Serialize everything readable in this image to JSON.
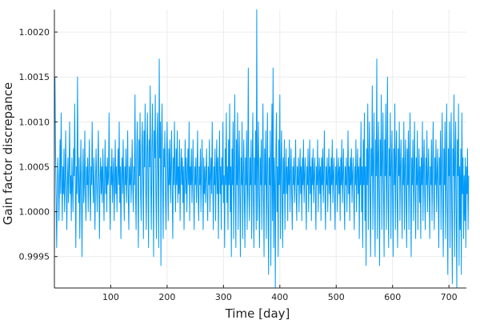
{
  "chart_data": {
    "type": "line",
    "title": "",
    "xlabel": "Time [day]",
    "ylabel": "Gain factor discrepance",
    "xlim": [
      0,
      731
    ],
    "ylim": [
      0.99915,
      1.00225
    ],
    "grid": true,
    "legend": "none",
    "x_ticks": [
      100,
      200,
      300,
      400,
      500,
      600,
      700
    ],
    "x_tick_labels": [
      "100",
      "200",
      "300",
      "400",
      "500",
      "600",
      "700"
    ],
    "y_ticks": [
      0.9995,
      1.0,
      1.0005,
      1.001,
      1.0015,
      1.002
    ],
    "y_tick_labels": [
      "0.9995",
      "1.0000",
      "1.0005",
      "1.0010",
      "1.0015",
      "1.0020"
    ],
    "series": [
      {
        "color": "#009af9",
        "x_start": 1,
        "x_step": 1,
        "values": [
          1.0015,
          1.0007,
          1.0002,
          0.9996,
          1.0001,
          1.0006,
          1.0004,
          0.9999,
          1.0003,
          1.0008,
          1.0002,
          1.0011,
          1.0004,
          0.9999,
          1.0005,
          1.0002,
          1.0007,
          1.0,
          1.0003,
          1.0009,
          1.0004,
          0.9998,
          1.0003,
          1.0006,
          1.0001,
          1.0005,
          1.001,
          1.0002,
          1.0004,
          0.9999,
          1.0006,
          1.0003,
          1.0,
          1.0007,
          1.0004,
          1.0012,
          1.0003,
          0.9996,
          1.0005,
          1.0002,
          1.0015,
          1.0004,
          1.0001,
          1.0006,
          0.9997,
          1.0003,
          1.0008,
          1.0002,
          0.9995,
          1.0004,
          1.0007,
          1.0001,
          1.0003,
          1.0009,
          1.0002,
          0.9999,
          1.0005,
          1.0003,
          1.0006,
          1.0,
          1.0004,
          1.0008,
          1.0002,
          0.9999,
          1.0005,
          1.0003,
          1.001,
          1.0004,
          1.0001,
          1.0006,
          1.0002,
          0.9998,
          1.0004,
          1.0007,
          1.0003,
          1.0,
          1.0005,
          1.0009,
          1.0003,
          0.9997,
          1.0004,
          1.0006,
          1.0002,
          1.0005,
          1.0001,
          1.0007,
          1.0003,
          0.9999,
          1.0004,
          1.0008,
          1.0002,
          1.0005,
          1.0,
          1.0006,
          1.0003,
          1.0004,
          1.0011,
          1.0002,
          0.9998,
          1.0005,
          1.0003,
          1.0007,
          1.0001,
          1.0004,
          1.0006,
          0.9999,
          1.0003,
          1.0008,
          1.0002,
          1.0005,
          1.0,
          1.0004,
          1.0007,
          1.0003,
          1.001,
          1.0001,
          1.0005,
          0.9997,
          1.0004,
          1.0006,
          1.0002,
          1.0008,
          1.0003,
          0.9999,
          1.0005,
          1.0003,
          1.0007,
          1.0001,
          1.0004,
          1.0009,
          1.0002,
          0.9998,
          1.0005,
          1.0003,
          1.0006,
          1.0001,
          1.0004,
          1.0008,
          1.0003,
          1.0,
          1.0005,
          1.0003,
          1.0013,
          1.0002,
          0.9998,
          1.0006,
          1.001,
          1.0003,
          0.9996,
          1.0008,
          1.0004,
          1.0011,
          1.0002,
          0.9999,
          1.0007,
          1.001,
          1.0004,
          0.9997,
          1.0009,
          1.0005,
          1.0012,
          1.0003,
          0.9998,
          1.0006,
          1.0011,
          1.0004,
          0.9996,
          1.0008,
          1.0005,
          1.0014,
          1.0003,
          0.9998,
          1.0007,
          1.0012,
          1.0004,
          0.9995,
          1.0009,
          1.0006,
          1.0013,
          1.0002,
          0.9997,
          1.0008,
          1.0011,
          1.0004,
          0.9996,
          1.0017,
          1.0006,
          1.001,
          0.9994,
          1.0008,
          1.0012,
          1.0003,
          0.9997,
          1.0007,
          1.0005,
          1.0009,
          1.0002,
          0.9998,
          1.0006,
          1.001,
          1.0004,
          0.9999,
          1.0007,
          1.0003,
          1.0008,
          1.0001,
          1.0005,
          1.0009,
          1.0002,
          0.9997,
          1.0006,
          1.0003,
          1.001,
          1.0004,
          1.0,
          1.0007,
          1.0003,
          1.0009,
          1.0001,
          1.0005,
          1.0002,
          1.0008,
          0.9999,
          1.0004,
          1.0007,
          1.0003,
          1.0006,
          1.0001,
          1.0005,
          0.9998,
          1.0004,
          1.0008,
          1.0002,
          1.0006,
          1.0,
          1.0004,
          1.0007,
          1.0003,
          1.001,
          0.9999,
          1.0005,
          1.0003,
          1.0007,
          1.0001,
          1.0004,
          1.0008,
          1.0002,
          0.9998,
          1.0005,
          1.0003,
          1.0006,
          1.0001,
          1.0004,
          1.0009,
          1.0002,
          0.9999,
          1.0005,
          1.0003,
          1.0007,
          1.0,
          1.0004,
          1.0008,
          1.0003,
          0.9998,
          1.0006,
          1.0002,
          1.0005,
          1.0001,
          1.0004,
          1.0007,
          1.0002,
          0.9999,
          1.0005,
          1.0003,
          1.0008,
          1.0,
          1.0004,
          1.0006,
          1.0002,
          1.001,
          1.0003,
          0.9998,
          1.0005,
          1.0003,
          1.0007,
          0.9999,
          1.0004,
          1.0008,
          1.0002,
          1.0006,
          0.9997,
          1.0004,
          1.0009,
          1.0002,
          1.0005,
          0.9998,
          1.0006,
          1.0003,
          1.001,
          1.0001,
          1.0004,
          0.9996,
          1.0007,
          1.0003,
          1.0011,
          1.0001,
          1.0005,
          0.9998,
          1.0008,
          1.0003,
          1.0012,
          1.0,
          1.0005,
          0.9995,
          1.0007,
          1.0003,
          1.001,
          0.9997,
          1.0005,
          1.0013,
          1.0002,
          0.9996,
          1.0008,
          1.0003,
          1.0011,
          0.9998,
          1.0005,
          1.0009,
          1.0002,
          0.9995,
          1.0006,
          1.0003,
          1.001,
          0.9997,
          1.0004,
          1.0008,
          1.0002,
          0.9996,
          1.0006,
          1.0003,
          1.0009,
          0.9998,
          1.0004,
          1.0016,
          1.0002,
          0.9999,
          1.0006,
          1.0003,
          1.0008,
          0.9997,
          1.0005,
          1.0011,
          1.0002,
          0.9996,
          1.0006,
          1.0003,
          1.0009,
          0.9998,
          1.0023,
          0.9999,
          1.0005,
          1.001,
          1.0001,
          0.9996,
          1.0006,
          1.0003,
          1.0008,
          0.9998,
          1.0005,
          1.0012,
          1.0002,
          0.9995,
          1.0007,
          1.0003,
          1.0009,
          0.9997,
          1.0004,
          1.0011,
          1.0001,
          0.9993,
          1.0006,
          1.0003,
          1.0009,
          0.9994,
          1.0005,
          1.0012,
          0.9999,
          1.0016,
          0.9996,
          1.0006,
          1.0003,
          0.9991,
          1.0007,
          1.0011,
          1.0,
          1.0005,
          0.9995,
          1.0008,
          1.0003,
          1.0013,
          0.9997,
          1.0005,
          1.0009,
          1.0001,
          0.9996,
          1.0006,
          1.0002,
          1.0008,
          0.9998,
          1.0004,
          1.0007,
          1.0002,
          1.0005,
          0.9999,
          1.0006,
          1.0003,
          1.0008,
          1.0,
          1.0004,
          1.0007,
          1.0002,
          0.9998,
          1.0005,
          1.0003,
          1.0006,
          1.0001,
          1.0004,
          1.0008,
          1.0002,
          0.9999,
          1.0005,
          1.0003,
          1.0006,
          1.0,
          1.0004,
          1.0007,
          1.0002,
          1.0005,
          0.9999,
          1.0006,
          1.0003,
          1.0008,
          1.0001,
          1.0004,
          1.0006,
          1.0002,
          0.9998,
          1.0005,
          1.0003,
          1.0007,
          1.0,
          1.0004,
          1.0008,
          1.0002,
          1.0005,
          0.9999,
          1.0006,
          1.0003,
          1.0007,
          1.0001,
          1.0004,
          1.0006,
          1.0002,
          0.9998,
          1.0005,
          1.0003,
          1.0008,
          1.0,
          1.0004,
          1.0006,
          1.0002,
          1.0005,
          0.9999,
          1.0006,
          1.0003,
          1.0007,
          1.0001,
          1.0004,
          1.0009,
          1.0002,
          0.9998,
          1.0005,
          1.0003,
          1.0006,
          1.0,
          1.0004,
          1.0007,
          1.0002,
          1.0005,
          0.9999,
          1.0006,
          1.0003,
          1.0008,
          1.0001,
          1.0004,
          1.0006,
          1.0002,
          0.9998,
          1.0005,
          1.0003,
          1.0007,
          1.0,
          1.0004,
          1.0006,
          1.0002,
          1.0005,
          0.9999,
          1.0006,
          1.0003,
          1.0008,
          1.0001,
          1.0004,
          1.0007,
          1.0002,
          0.9998,
          1.0005,
          1.0003,
          1.0006,
          1.0,
          1.0004,
          1.0009,
          1.0002,
          1.0005,
          0.9999,
          1.0006,
          1.0003,
          1.0007,
          1.0001,
          1.0004,
          1.0006,
          1.0002,
          0.9998,
          1.0005,
          1.0003,
          1.0008,
          1.0,
          1.0004,
          1.0007,
          1.0002,
          1.0005,
          0.9997,
          1.0006,
          1.0003,
          1.001,
          1.0,
          1.0005,
          0.9996,
          1.0008,
          1.0003,
          1.0011,
          0.9999,
          1.0005,
          0.9994,
          1.0007,
          1.0003,
          1.0012,
          0.9998,
          1.0006,
          1.001,
          1.0002,
          0.9995,
          1.0007,
          1.0004,
          1.0014,
          0.9998,
          1.0005,
          1.0011,
          1.0002,
          0.9995,
          1.0008,
          1.0004,
          1.0017,
          0.9997,
          1.0006,
          1.001,
          1.0001,
          0.9994,
          1.0008,
          1.0004,
          1.0013,
          0.9998,
          1.0006,
          1.0011,
          1.0002,
          0.9995,
          1.0008,
          1.0004,
          1.0012,
          0.9998,
          1.0006,
          1.0015,
          1.0001,
          0.9996,
          1.0007,
          1.0004,
          1.0011,
          0.9997,
          1.0005,
          1.0009,
          1.0002,
          0.9995,
          1.0007,
          1.0003,
          1.0012,
          0.9998,
          1.0006,
          1.0009,
          1.0001,
          0.9996,
          1.0007,
          1.0004,
          1.001,
          0.9999,
          1.0005,
          1.0008,
          1.0002,
          0.9997,
          1.0006,
          1.0003,
          1.001,
          0.9998,
          1.0005,
          1.0008,
          1.0001,
          0.9996,
          1.0007,
          1.0003,
          1.0009,
          0.9998,
          1.0005,
          1.0011,
          1.0002,
          0.9995,
          1.0006,
          1.0003,
          1.0008,
          0.9999,
          1.0005,
          1.001,
          1.0002,
          0.9997,
          1.0006,
          1.0003,
          1.0009,
          0.9998,
          1.0004,
          1.0007,
          1.0001,
          1.0005,
          0.9997,
          1.0006,
          1.0003,
          1.001,
          0.9999,
          1.0005,
          1.0008,
          1.0002,
          0.9998,
          1.0006,
          1.0003,
          1.0009,
          1.0,
          1.0004,
          1.0007,
          1.0002,
          0.9997,
          1.0005,
          1.0003,
          1.0008,
          0.9999,
          1.0005,
          1.001,
          1.0002,
          0.9998,
          1.0006,
          1.0003,
          1.0008,
          1.0,
          1.0004,
          1.0007,
          1.0002,
          0.9996,
          1.0006,
          1.0003,
          1.0009,
          0.9998,
          1.0005,
          1.0011,
          1.0001,
          0.9995,
          1.0007,
          1.0003,
          1.001,
          0.9997,
          1.0005,
          1.0012,
          1.0001,
          0.9993,
          1.0007,
          1.0004,
          1.001,
          0.9996,
          1.0006,
          1.0011,
          1.0,
          0.9992,
          1.0007,
          1.0004,
          1.0013,
          0.9995,
          1.0006,
          1.001,
          0.9999,
          0.9991,
          1.0008,
          1.0004,
          1.0012,
          0.9994,
          1.0005,
          0.9998,
          1.0007,
          0.9993,
          1.0011,
          1.0002,
          1.0006,
          0.9997,
          1.0004,
          0.9999,
          1.0006,
          0.9996,
          1.0005,
          1.0002,
          1.0007,
          0.9998,
          1.0004
        ]
      }
    ]
  }
}
